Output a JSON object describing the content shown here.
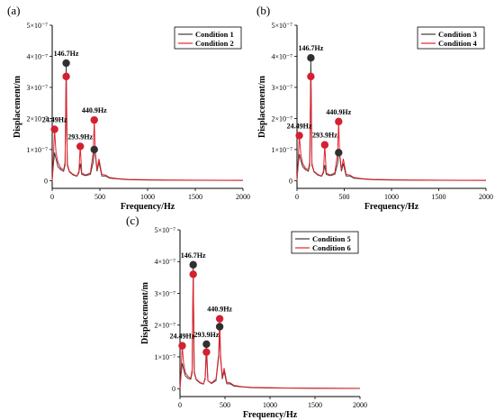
{
  "colors": {
    "series_1": "#3a3a3a",
    "series_2": "#e8202a",
    "marker_dark": "#303030",
    "marker_red": "#d42030",
    "axis": "#000000"
  },
  "chart_data": [
    {
      "type": "line",
      "panel_label": "(a)",
      "title": "",
      "xlabel": "Frequency/Hz",
      "ylabel": "Displacement/m",
      "xlim": [
        0,
        2000
      ],
      "ylim": [
        -2.5e-08,
        5e-07
      ],
      "xticks": [
        0,
        500,
        1000,
        1500,
        2000
      ],
      "xtick_labels": [
        "0",
        "500",
        "1000",
        "1500",
        "2000"
      ],
      "yticks": [
        0,
        1e-07,
        2e-07,
        3e-07,
        4e-07,
        5e-07
      ],
      "ytick_labels": [
        "0",
        "1×10⁻⁷",
        "2×10⁻⁷",
        "3×10⁻⁷",
        "4×10⁻⁷",
        "5×10⁻⁷"
      ],
      "legend_position": "top-right",
      "series": [
        {
          "name": "Condition 1",
          "color": "#3a3a3a",
          "x": [
            0,
            12,
            24.49,
            40,
            60,
            90,
            120,
            135,
            146.7,
            158,
            180,
            220,
            260,
            280,
            293.9,
            310,
            350,
            400,
            430,
            440.9,
            450,
            470,
            490,
            520,
            560,
            600,
            700,
            800,
            1000,
            1200,
            1500,
            1800,
            2000
          ],
          "y": [
            0.0,
            5e-08,
            9e-08,
            7e-08,
            4.5e-08,
            3.5e-08,
            3e-08,
            5e-08,
            3.78e-07,
            5e-08,
            2.8e-08,
            1.8e-08,
            1.4e-08,
            2.5e-08,
            5.5e-08,
            2e-08,
            1.6e-08,
            2e-08,
            6e-08,
            1e-07,
            9e-08,
            3e-08,
            6e-08,
            1.5e-08,
            1.5e-08,
            8e-09,
            5e-09,
            3e-09,
            2e-09,
            1.5e-09,
            1e-09,
            8e-10,
            6e-10
          ]
        },
        {
          "name": "Condition 2",
          "color": "#e8202a",
          "x": [
            0,
            12,
            24.49,
            40,
            60,
            90,
            120,
            135,
            146.7,
            158,
            180,
            220,
            260,
            280,
            293.9,
            310,
            350,
            400,
            430,
            440.9,
            450,
            470,
            490,
            520,
            560,
            600,
            700,
            800,
            1000,
            1200,
            1500,
            1800,
            2000
          ],
          "y": [
            0.0,
            7e-08,
            1.65e-07,
            9e-08,
            6e-08,
            4e-08,
            3.5e-08,
            6e-08,
            3.35e-07,
            5.5e-08,
            3e-08,
            2e-08,
            1.5e-08,
            3e-08,
            1.1e-07,
            2.5e-08,
            1.8e-08,
            2.5e-08,
            9e-08,
            1.95e-07,
            1e-07,
            3.5e-08,
            7e-08,
            2e-08,
            1.8e-08,
            1e-08,
            6e-09,
            4e-09,
            3e-09,
            2e-09,
            1.5e-09,
            1e-09,
            8e-10
          ]
        }
      ],
      "peaks": [
        {
          "label": "24.49Hz",
          "x": 24.49,
          "markers": [
            {
              "y": 1.65e-07,
              "color": "#d42030"
            }
          ]
        },
        {
          "label": "146.7Hz",
          "x": 146.7,
          "markers": [
            {
              "y": 3.78e-07,
              "color": "#303030"
            },
            {
              "y": 3.35e-07,
              "color": "#d42030"
            }
          ]
        },
        {
          "label": "293.9Hz",
          "x": 293.9,
          "markers": [
            {
              "y": 1.1e-07,
              "color": "#d42030"
            }
          ]
        },
        {
          "label": "440.9Hz",
          "x": 440.9,
          "markers": [
            {
              "y": 1.95e-07,
              "color": "#d42030"
            },
            {
              "y": 1e-07,
              "color": "#303030"
            }
          ]
        }
      ]
    },
    {
      "type": "line",
      "panel_label": "(b)",
      "title": "",
      "xlabel": "Frequency/Hz",
      "ylabel": "Displacement/m",
      "xlim": [
        0,
        2000
      ],
      "ylim": [
        -2.5e-08,
        5e-07
      ],
      "xticks": [
        0,
        500,
        1000,
        1500,
        2000
      ],
      "xtick_labels": [
        "0",
        "500",
        "1000",
        "1500",
        "2000"
      ],
      "yticks": [
        0,
        1e-07,
        2e-07,
        3e-07,
        4e-07,
        5e-07
      ],
      "ytick_labels": [
        "0",
        "1×10⁻⁷",
        "2×10⁻⁷",
        "3×10⁻⁷",
        "4×10⁻⁷",
        "5×10⁻⁷"
      ],
      "legend_position": "top-right",
      "series": [
        {
          "name": "Condition 3",
          "color": "#3a3a3a",
          "x": [
            0,
            12,
            24.49,
            40,
            60,
            90,
            120,
            135,
            146.7,
            158,
            180,
            220,
            260,
            280,
            293.9,
            310,
            350,
            400,
            430,
            440.9,
            450,
            470,
            490,
            520,
            560,
            600,
            700,
            800,
            1000,
            1200,
            1500,
            1800,
            2000
          ],
          "y": [
            0.0,
            5e-08,
            8.5e-08,
            6.5e-08,
            4.5e-08,
            3.5e-08,
            3e-08,
            5e-08,
            3.95e-07,
            5e-08,
            2.8e-08,
            1.8e-08,
            1.4e-08,
            2.5e-08,
            5e-08,
            2e-08,
            1.6e-08,
            2e-08,
            5.5e-08,
            9e-08,
            8.5e-08,
            3e-08,
            5.5e-08,
            1.5e-08,
            1.5e-08,
            8e-09,
            5e-09,
            3e-09,
            2e-09,
            1.5e-09,
            1e-09,
            8e-10,
            6e-10
          ]
        },
        {
          "name": "Condition 4",
          "color": "#e8202a",
          "x": [
            0,
            12,
            24.49,
            40,
            60,
            90,
            120,
            135,
            146.7,
            158,
            180,
            220,
            260,
            280,
            293.9,
            310,
            350,
            400,
            430,
            440.9,
            450,
            470,
            490,
            520,
            560,
            600,
            700,
            800,
            1000,
            1200,
            1500,
            1800,
            2000
          ],
          "y": [
            0.0,
            6e-08,
            1.45e-07,
            8.5e-08,
            5.5e-08,
            4e-08,
            3.5e-08,
            6e-08,
            3.35e-07,
            5.5e-08,
            3e-08,
            2e-08,
            1.5e-08,
            3e-08,
            1.15e-07,
            2.5e-08,
            1.8e-08,
            2.5e-08,
            9e-08,
            1.9e-07,
            9.5e-08,
            3.5e-08,
            7e-08,
            2e-08,
            1.8e-08,
            1e-08,
            6e-09,
            4e-09,
            3e-09,
            2e-09,
            1.5e-09,
            1e-09,
            8e-10
          ]
        }
      ],
      "peaks": [
        {
          "label": "24.49Hz",
          "x": 24.49,
          "markers": [
            {
              "y": 1.45e-07,
              "color": "#d42030"
            }
          ]
        },
        {
          "label": "146.7Hz",
          "x": 146.7,
          "markers": [
            {
              "y": 3.95e-07,
              "color": "#303030"
            },
            {
              "y": 3.35e-07,
              "color": "#d42030"
            }
          ]
        },
        {
          "label": "293.9Hz",
          "x": 293.9,
          "markers": [
            {
              "y": 1.15e-07,
              "color": "#d42030"
            }
          ]
        },
        {
          "label": "440.9Hz",
          "x": 440.9,
          "markers": [
            {
              "y": 1.9e-07,
              "color": "#d42030"
            },
            {
              "y": 9e-08,
              "color": "#303030"
            }
          ]
        }
      ]
    },
    {
      "type": "line",
      "panel_label": "(c)",
      "title": "",
      "xlabel": "Frequency/Hz",
      "ylabel": "Displacement/m",
      "xlim": [
        0,
        2000
      ],
      "ylim": [
        -2.5e-08,
        5e-07
      ],
      "xticks": [
        0,
        500,
        1000,
        1500,
        2000
      ],
      "xtick_labels": [
        "0",
        "500",
        "1000",
        "1500",
        "2000"
      ],
      "yticks": [
        0,
        1e-07,
        2e-07,
        3e-07,
        4e-07,
        5e-07
      ],
      "ytick_labels": [
        "0",
        "1×10⁻⁷",
        "2×10⁻⁷",
        "3×10⁻⁷",
        "4×10⁻⁷",
        "5×10⁻⁷"
      ],
      "legend_position": "top-right",
      "series": [
        {
          "name": "Condition 5",
          "color": "#3a3a3a",
          "x": [
            0,
            12,
            24.49,
            40,
            60,
            90,
            120,
            135,
            146.7,
            158,
            180,
            220,
            260,
            280,
            293.9,
            310,
            350,
            400,
            430,
            440.9,
            450,
            470,
            490,
            520,
            560,
            600,
            700,
            800,
            1000,
            1200,
            1500,
            1800,
            2000
          ],
          "y": [
            0.0,
            4.5e-08,
            8e-08,
            6e-08,
            4e-08,
            3.2e-08,
            3e-08,
            5e-08,
            3.9e-07,
            5e-08,
            2.8e-08,
            1.8e-08,
            1.4e-08,
            3.5e-08,
            1.4e-07,
            2.5e-08,
            1.6e-08,
            2.5e-08,
            1e-07,
            1.95e-07,
            1e-07,
            3e-08,
            5.5e-08,
            1.5e-08,
            1.5e-08,
            8e-09,
            5e-09,
            3e-09,
            2e-09,
            1.5e-09,
            1e-09,
            8e-10,
            6e-10
          ]
        },
        {
          "name": "Condition 6",
          "color": "#e8202a",
          "x": [
            0,
            12,
            24.49,
            40,
            60,
            90,
            120,
            135,
            146.7,
            158,
            180,
            220,
            260,
            280,
            293.9,
            310,
            350,
            400,
            430,
            440.9,
            450,
            470,
            490,
            520,
            560,
            600,
            700,
            800,
            1000,
            1200,
            1500,
            1800,
            2000
          ],
          "y": [
            0.0,
            5.5e-08,
            1.35e-07,
            8e-08,
            5e-08,
            3.8e-08,
            3.3e-08,
            6e-08,
            3.6e-07,
            5.5e-08,
            3e-08,
            2e-08,
            1.5e-08,
            3e-08,
            1.15e-07,
            2.5e-08,
            1.8e-08,
            3e-08,
            1.1e-07,
            2.2e-07,
            1.1e-07,
            3.5e-08,
            6.5e-08,
            2e-08,
            1.8e-08,
            1e-08,
            6e-09,
            4e-09,
            3e-09,
            2e-09,
            1.5e-09,
            1e-09,
            8e-10
          ]
        }
      ],
      "peaks": [
        {
          "label": "24.49Hz",
          "x": 24.49,
          "markers": [
            {
              "y": 1.35e-07,
              "color": "#d42030"
            }
          ]
        },
        {
          "label": "146.7Hz",
          "x": 146.7,
          "markers": [
            {
              "y": 3.9e-07,
              "color": "#303030"
            },
            {
              "y": 3.6e-07,
              "color": "#d42030"
            }
          ]
        },
        {
          "label": "293.9Hz",
          "x": 293.9,
          "markers": [
            {
              "y": 1.4e-07,
              "color": "#303030"
            },
            {
              "y": 1.15e-07,
              "color": "#d42030"
            }
          ]
        },
        {
          "label": "440.9Hz",
          "x": 440.9,
          "markers": [
            {
              "y": 2.2e-07,
              "color": "#d42030"
            },
            {
              "y": 1.95e-07,
              "color": "#303030"
            }
          ]
        }
      ]
    }
  ]
}
